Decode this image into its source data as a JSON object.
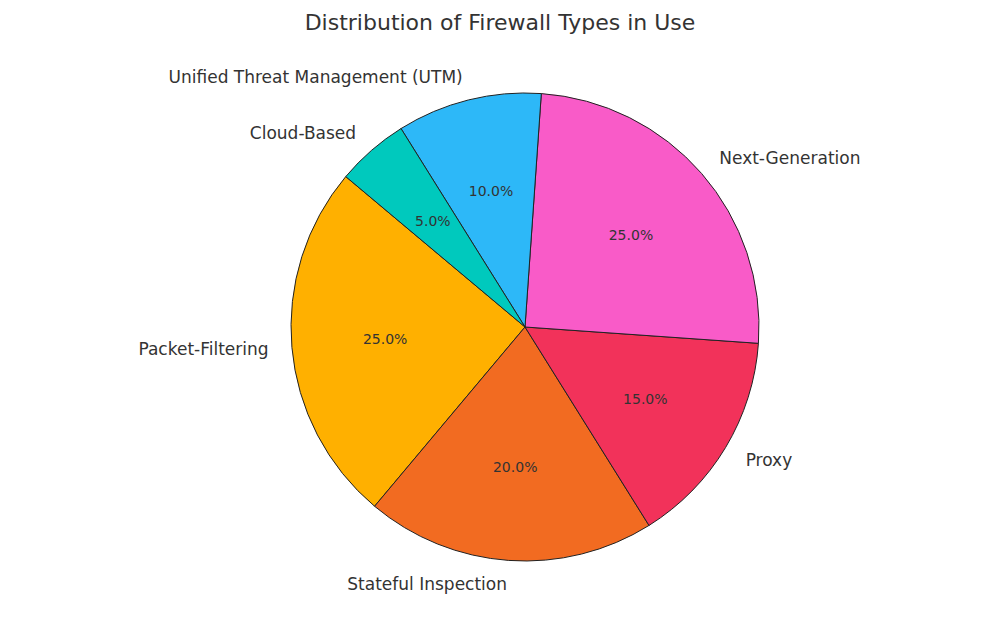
{
  "chart_data": {
    "type": "pie",
    "title": "Distribution of Firewall Types in Use",
    "categories": [
      "Packet-Filtering",
      "Stateful Inspection",
      "Proxy",
      "Next-Generation",
      "Unified Threat Management (UTM)",
      "Cloud-Based"
    ],
    "values": [
      25,
      20,
      15,
      25,
      10,
      5
    ],
    "value_labels": [
      "25.0%",
      "20.0%",
      "15.0%",
      "25.0%",
      "10.0%",
      "5.0%"
    ],
    "colors": [
      "#ffb000",
      "#f26b21",
      "#f2325a",
      "#f95bc8",
      "#2db8f8",
      "#00c9bd"
    ],
    "data_labels": true
  }
}
